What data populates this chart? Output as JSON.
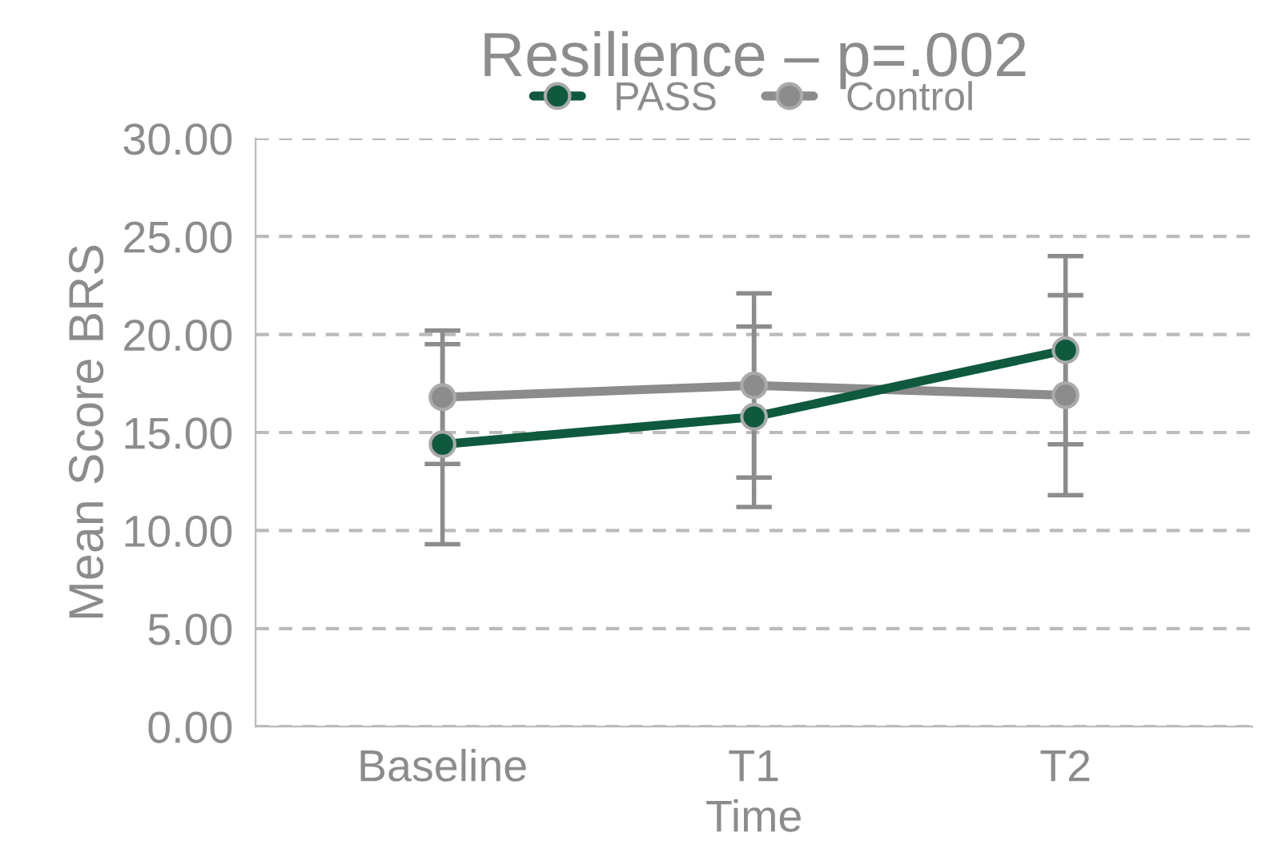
{
  "chart_data": {
    "type": "line",
    "title": "Resilience – p=.002",
    "xlabel": "Time",
    "ylabel": "Mean Score BRS",
    "categories": [
      "Baseline",
      "T1",
      "T2"
    ],
    "series": [
      {
        "name": "PASS",
        "color": "#0f5a3e",
        "values": [
          14.4,
          15.8,
          19.2
        ],
        "errors": [
          5.1,
          4.6,
          4.8
        ]
      },
      {
        "name": "Control",
        "color": "#8c8c8c",
        "values": [
          16.8,
          17.4,
          16.9
        ],
        "errors": [
          3.4,
          4.7,
          5.1
        ]
      }
    ],
    "ylim": [
      0,
      30
    ],
    "yticks": [
      {
        "value": 0,
        "label": "0.00"
      },
      {
        "value": 5,
        "label": "5.00"
      },
      {
        "value": 10,
        "label": "10.00"
      },
      {
        "value": 15,
        "label": "15.00"
      },
      {
        "value": 20,
        "label": "20.00"
      },
      {
        "value": 25,
        "label": "25.00"
      },
      {
        "value": 30,
        "label": "30.00"
      }
    ],
    "grid": "y",
    "legend": "top",
    "marker": "circle",
    "line_style": "solid"
  }
}
